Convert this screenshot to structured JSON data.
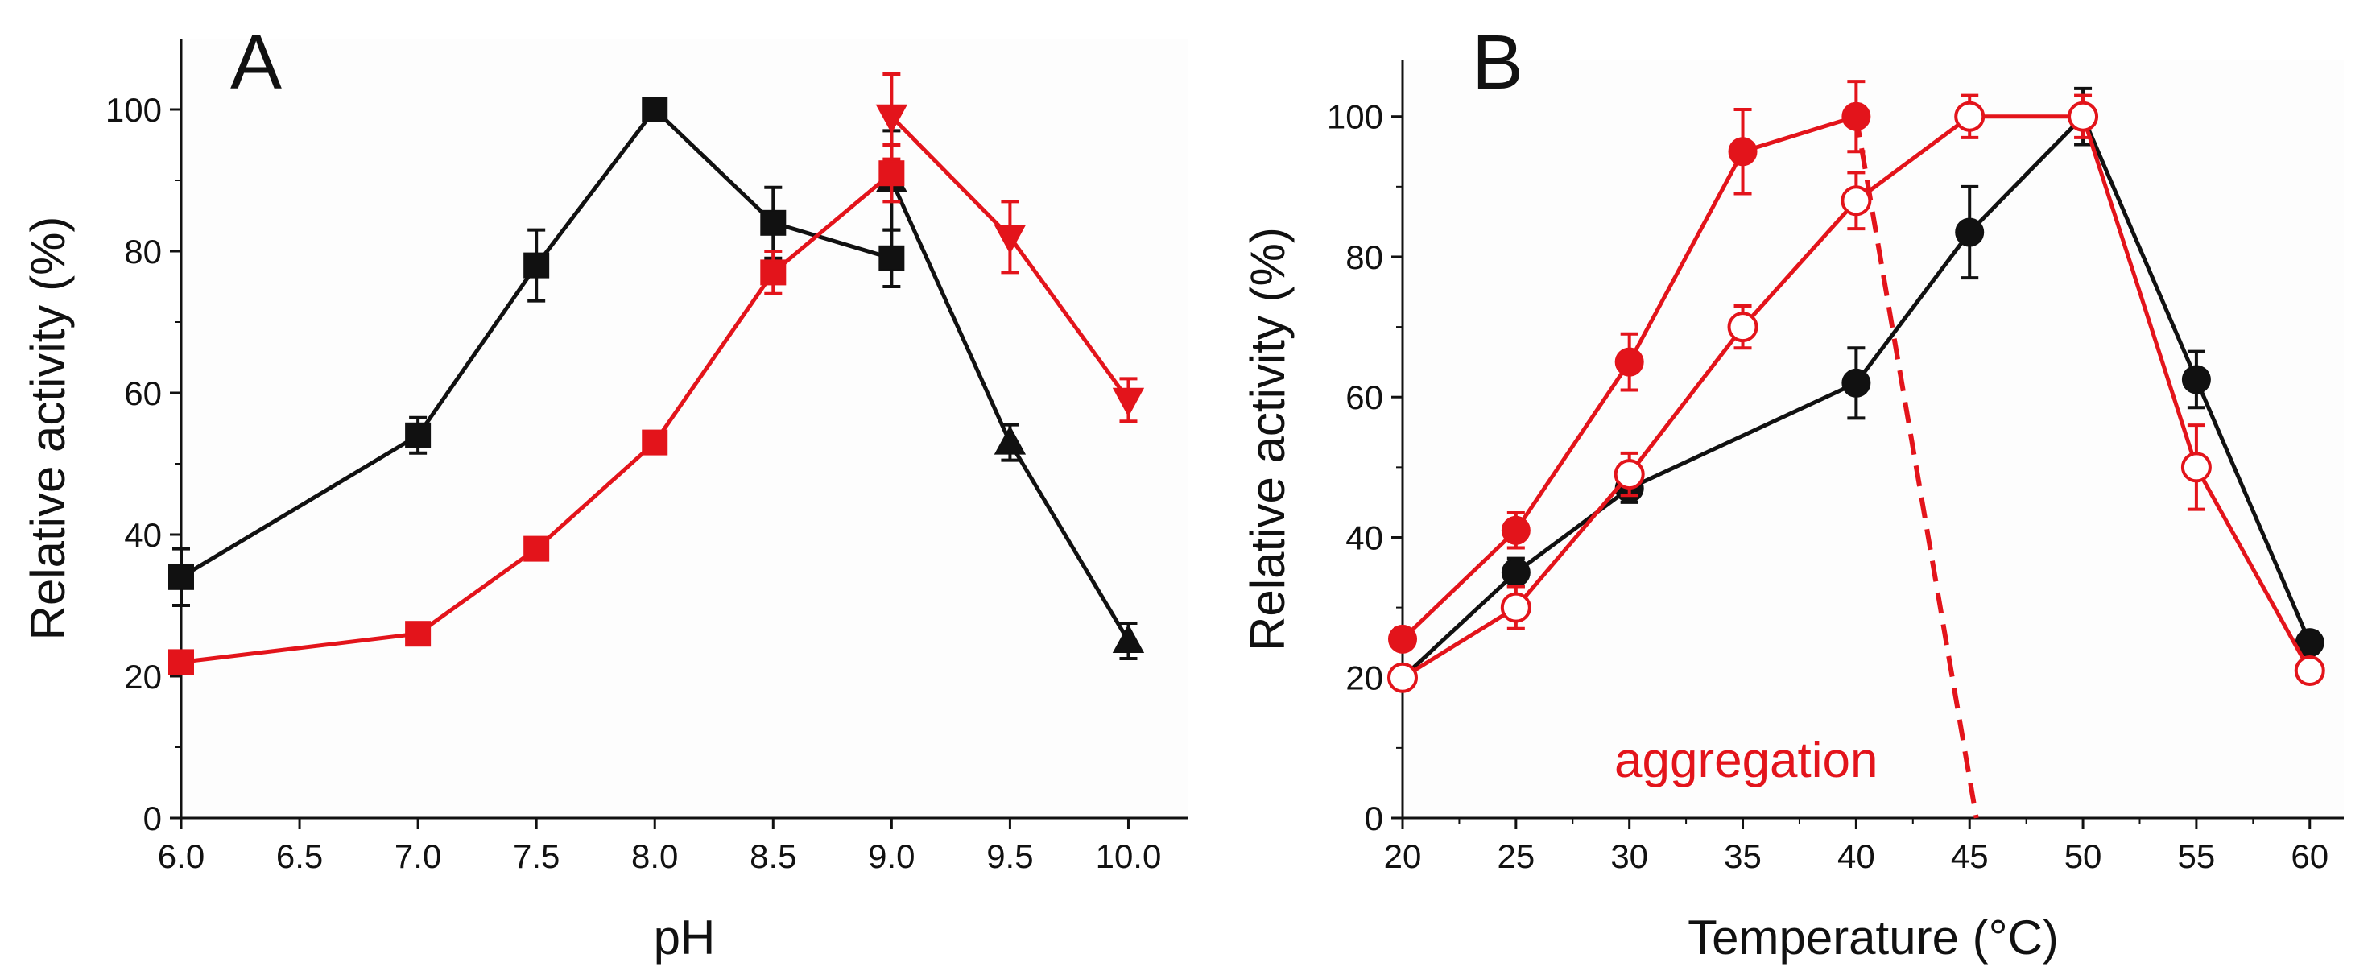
{
  "colors": {
    "black": "#111111",
    "red": "#e3141b",
    "plot_bg": "#fdfdfd"
  },
  "chart_data": [
    {
      "type": "line",
      "panel_label": "A",
      "xlabel": "pH",
      "ylabel": "Relative activity (%)",
      "xlim": [
        6.0,
        10.25
      ],
      "ylim": [
        0,
        110
      ],
      "x_ticks": [
        "6.0",
        "6.5",
        "7.0",
        "7.5",
        "8.0",
        "8.5",
        "9.0",
        "9.5",
        "10.0"
      ],
      "y_ticks": [
        "0",
        "20",
        "40",
        "60",
        "80",
        "100"
      ],
      "grid": false,
      "legend": "none",
      "series": [
        {
          "color": "black",
          "marker": "square",
          "filled": true,
          "points": [
            {
              "x": 6.0,
              "y": 34,
              "err": 4
            },
            {
              "x": 7.0,
              "y": 54,
              "err": 2.5
            },
            {
              "x": 7.5,
              "y": 78,
              "err": 5
            },
            {
              "x": 8.0,
              "y": 100,
              "err": 1
            },
            {
              "x": 8.5,
              "y": 84,
              "err": 5
            },
            {
              "x": 9.0,
              "y": 79,
              "err": 4
            }
          ]
        },
        {
          "color": "black",
          "marker": "triangle-up",
          "filled": true,
          "points": [
            {
              "x": 9.0,
              "y": 90,
              "err": 7
            },
            {
              "x": 9.5,
              "y": 53,
              "err": 2.5
            },
            {
              "x": 10.0,
              "y": 25,
              "err": 2.5
            }
          ]
        },
        {
          "color": "red",
          "marker": "square",
          "filled": true,
          "points": [
            {
              "x": 6.0,
              "y": 22,
              "err": 1.5
            },
            {
              "x": 7.0,
              "y": 26,
              "err": 1.5
            },
            {
              "x": 7.5,
              "y": 38,
              "err": 1.5
            },
            {
              "x": 8.0,
              "y": 53,
              "err": 1.5
            },
            {
              "x": 8.5,
              "y": 77,
              "err": 3
            },
            {
              "x": 9.0,
              "y": 91,
              "err": 4
            }
          ]
        },
        {
          "color": "red",
          "marker": "triangle-down",
          "filled": true,
          "points": [
            {
              "x": 9.0,
              "y": 99,
              "err": 6
            },
            {
              "x": 9.5,
              "y": 82,
              "err": 5
            },
            {
              "x": 10.0,
              "y": 59,
              "err": 3
            }
          ]
        }
      ]
    },
    {
      "type": "line",
      "panel_label": "B",
      "xlabel": "Temperature (°C)",
      "ylabel": "Relative activity (%)",
      "xlim": [
        20,
        61.5
      ],
      "ylim": [
        0,
        108
      ],
      "x_ticks": [
        "20",
        "25",
        "30",
        "35",
        "40",
        "45",
        "50",
        "55",
        "60"
      ],
      "y_ticks": [
        "0",
        "20",
        "40",
        "60",
        "80",
        "100"
      ],
      "grid": false,
      "legend": "none",
      "annotation": {
        "text": "aggregation",
        "color": "red"
      },
      "dashed_line": {
        "color": "red",
        "from": {
          "x": 40,
          "y": 100
        },
        "to": {
          "x": 45.3,
          "y": 0
        }
      },
      "series": [
        {
          "color": "black",
          "marker": "circle",
          "filled": true,
          "points": [
            {
              "x": 20,
              "y": 20,
              "err": 1.5
            },
            {
              "x": 25,
              "y": 35,
              "err": 2
            },
            {
              "x": 30,
              "y": 47,
              "err": 2
            },
            {
              "x": 40,
              "y": 62,
              "err": 5
            },
            {
              "x": 45,
              "y": 83.5,
              "err": 6.5
            },
            {
              "x": 50,
              "y": 100,
              "err": 4
            },
            {
              "x": 55,
              "y": 62.5,
              "err": 4
            },
            {
              "x": 60,
              "y": 25,
              "err": 1.5
            }
          ]
        },
        {
          "color": "red",
          "marker": "circle",
          "filled": true,
          "points": [
            {
              "x": 20,
              "y": 25.5,
              "err": 1.5
            },
            {
              "x": 25,
              "y": 41,
              "err": 2.5
            },
            {
              "x": 30,
              "y": 65,
              "err": 4
            },
            {
              "x": 35,
              "y": 95,
              "err": 6
            },
            {
              "x": 40,
              "y": 100,
              "err": 5
            }
          ]
        },
        {
          "color": "red",
          "marker": "circle",
          "filled": false,
          "points": [
            {
              "x": 20,
              "y": 20,
              "err": 1.5
            },
            {
              "x": 25,
              "y": 30,
              "err": 3
            },
            {
              "x": 30,
              "y": 49,
              "err": 3
            },
            {
              "x": 35,
              "y": 70,
              "err": 3
            },
            {
              "x": 40,
              "y": 88,
              "err": 4
            },
            {
              "x": 45,
              "y": 100,
              "err": 3
            },
            {
              "x": 50,
              "y": 100,
              "err": 3
            },
            {
              "x": 55,
              "y": 50,
              "err": 6
            },
            {
              "x": 60,
              "y": 21,
              "err": 1.5
            }
          ]
        }
      ]
    }
  ]
}
